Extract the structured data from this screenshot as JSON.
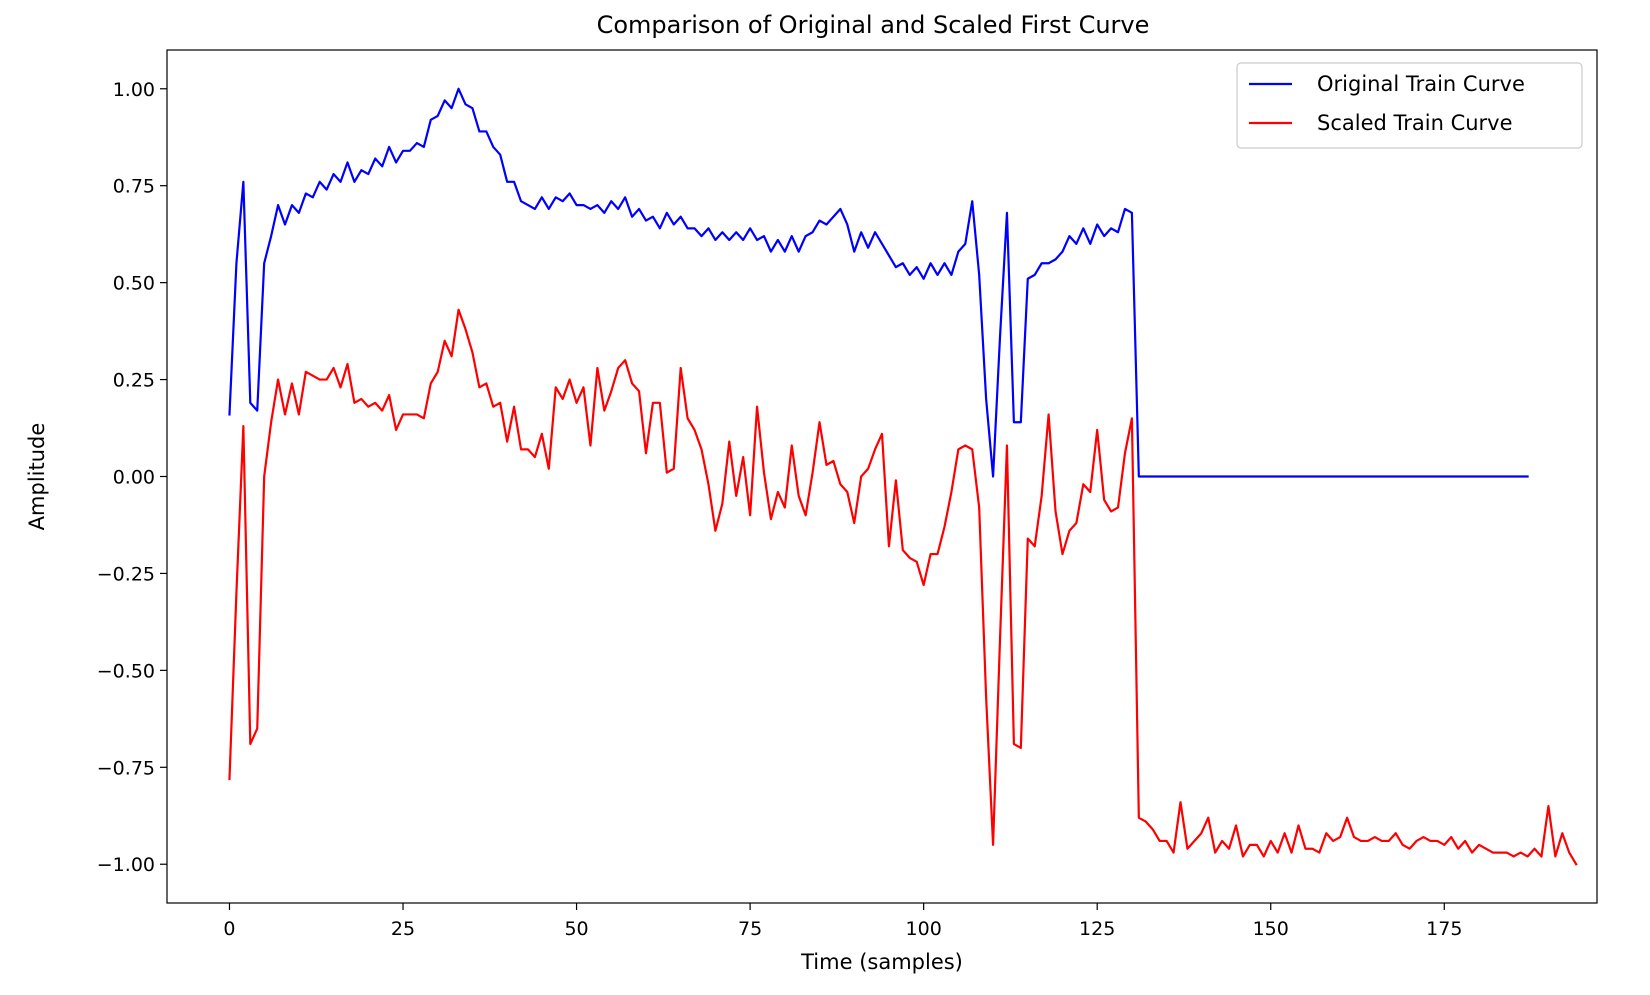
{
  "chart_data": {
    "type": "line",
    "title": "Comparison of Original and Scaled First Curve",
    "xlabel": "Time (samples)",
    "ylabel": "Amplitude",
    "xlim": [
      -9,
      197
    ],
    "ylim": [
      -1.1,
      1.1
    ],
    "xticks": [
      0,
      25,
      50,
      75,
      100,
      125,
      150,
      175
    ],
    "yticks": [
      1.0,
      0.75,
      0.5,
      0.25,
      0.0,
      -0.25,
      -0.5,
      -0.75,
      -1.0
    ],
    "xtick_labels": [
      "0",
      "25",
      "50",
      "75",
      "100",
      "125",
      "150",
      "175"
    ],
    "ytick_labels": [
      "1.00",
      "0.75",
      "0.50",
      "0.25",
      "0.00",
      "−0.25",
      "−0.50",
      "−0.75",
      "−1.00"
    ],
    "grid": false,
    "legend_position": "top-right",
    "series": [
      {
        "name": "Original Train Curve",
        "color": "#0000ff",
        "x_start": 0,
        "values": [
          0.16,
          0.55,
          0.76,
          0.19,
          0.17,
          0.55,
          0.62,
          0.7,
          0.65,
          0.7,
          0.68,
          0.73,
          0.72,
          0.76,
          0.74,
          0.78,
          0.76,
          0.81,
          0.76,
          0.79,
          0.78,
          0.82,
          0.8,
          0.85,
          0.81,
          0.84,
          0.84,
          0.86,
          0.85,
          0.92,
          0.93,
          0.97,
          0.95,
          1.0,
          0.96,
          0.95,
          0.89,
          0.89,
          0.85,
          0.83,
          0.76,
          0.76,
          0.71,
          0.7,
          0.69,
          0.72,
          0.69,
          0.72,
          0.71,
          0.73,
          0.7,
          0.7,
          0.69,
          0.7,
          0.68,
          0.71,
          0.69,
          0.72,
          0.67,
          0.69,
          0.66,
          0.67,
          0.64,
          0.68,
          0.65,
          0.67,
          0.64,
          0.64,
          0.62,
          0.64,
          0.61,
          0.63,
          0.61,
          0.63,
          0.61,
          0.64,
          0.61,
          0.62,
          0.58,
          0.61,
          0.58,
          0.62,
          0.58,
          0.62,
          0.63,
          0.66,
          0.65,
          0.67,
          0.69,
          0.65,
          0.58,
          0.63,
          0.59,
          0.63,
          0.6,
          0.57,
          0.54,
          0.55,
          0.52,
          0.54,
          0.51,
          0.55,
          0.52,
          0.55,
          0.52,
          0.58,
          0.6,
          0.71,
          0.52,
          0.2,
          0.0,
          0.36,
          0.68,
          0.14,
          0.14,
          0.51,
          0.52,
          0.55,
          0.55,
          0.56,
          0.58,
          0.62,
          0.6,
          0.64,
          0.6,
          0.65,
          0.62,
          0.64,
          0.63,
          0.69,
          0.68,
          0.0,
          0.0,
          0.0,
          0.0,
          0.0,
          0.0,
          0.0,
          0.0,
          0.0,
          0.0,
          0.0,
          0.0,
          0.0,
          0.0,
          0.0,
          0.0,
          0.0,
          0.0,
          0.0,
          0.0,
          0.0,
          0.0,
          0.0,
          0.0,
          0.0,
          0.0,
          0.0,
          0.0,
          0.0,
          0.0,
          0.0,
          0.0,
          0.0,
          0.0,
          0.0,
          0.0,
          0.0,
          0.0,
          0.0,
          0.0,
          0.0,
          0.0,
          0.0,
          0.0,
          0.0,
          0.0,
          0.0,
          0.0,
          0.0,
          0.0,
          0.0,
          0.0,
          0.0,
          0.0,
          0.0,
          0.0,
          0.0
        ]
      },
      {
        "name": "Scaled Train Curve",
        "color": "#ff0000",
        "x_start": 0,
        "values": [
          -0.78,
          -0.3,
          0.13,
          -0.69,
          -0.65,
          0.0,
          0.14,
          0.25,
          0.16,
          0.24,
          0.16,
          0.27,
          0.26,
          0.25,
          0.25,
          0.28,
          0.23,
          0.29,
          0.19,
          0.2,
          0.18,
          0.19,
          0.17,
          0.21,
          0.12,
          0.16,
          0.16,
          0.16,
          0.15,
          0.24,
          0.27,
          0.35,
          0.31,
          0.43,
          0.38,
          0.32,
          0.23,
          0.24,
          0.18,
          0.19,
          0.09,
          0.18,
          0.07,
          0.07,
          0.05,
          0.11,
          0.02,
          0.23,
          0.2,
          0.25,
          0.19,
          0.23,
          0.08,
          0.28,
          0.17,
          0.22,
          0.28,
          0.3,
          0.24,
          0.22,
          0.06,
          0.19,
          0.19,
          0.01,
          0.02,
          0.28,
          0.15,
          0.12,
          0.07,
          -0.02,
          -0.14,
          -0.07,
          0.09,
          -0.05,
          0.05,
          -0.1,
          0.18,
          0.01,
          -0.11,
          -0.04,
          -0.08,
          0.08,
          -0.05,
          -0.1,
          0.01,
          0.14,
          0.03,
          0.04,
          -0.02,
          -0.04,
          -0.12,
          0.0,
          0.02,
          0.07,
          0.11,
          -0.18,
          -0.01,
          -0.19,
          -0.21,
          -0.22,
          -0.28,
          -0.2,
          -0.2,
          -0.13,
          -0.04,
          0.07,
          0.08,
          0.07,
          -0.08,
          -0.57,
          -0.95,
          -0.42,
          0.08,
          -0.69,
          -0.7,
          -0.16,
          -0.18,
          -0.05,
          0.16,
          -0.09,
          -0.2,
          -0.14,
          -0.12,
          -0.02,
          -0.04,
          0.12,
          -0.06,
          -0.09,
          -0.08,
          0.06,
          0.15,
          -0.88,
          -0.89,
          -0.91,
          -0.94,
          -0.94,
          -0.97,
          -0.84,
          -0.96,
          -0.94,
          -0.92,
          -0.88,
          -0.97,
          -0.94,
          -0.96,
          -0.9,
          -0.98,
          -0.95,
          -0.95,
          -0.98,
          -0.94,
          -0.97,
          -0.92,
          -0.97,
          -0.9,
          -0.96,
          -0.96,
          -0.97,
          -0.92,
          -0.94,
          -0.93,
          -0.88,
          -0.93,
          -0.94,
          -0.94,
          -0.93,
          -0.94,
          -0.94,
          -0.92,
          -0.95,
          -0.96,
          -0.94,
          -0.93,
          -0.94,
          -0.94,
          -0.95,
          -0.93,
          -0.96,
          -0.94,
          -0.97,
          -0.95,
          -0.96,
          -0.97,
          -0.97,
          -0.97,
          -0.98,
          -0.97,
          -0.98,
          -0.96,
          -0.98,
          -0.85,
          -0.98,
          -0.92,
          -0.97,
          -1.0
        ]
      }
    ]
  }
}
